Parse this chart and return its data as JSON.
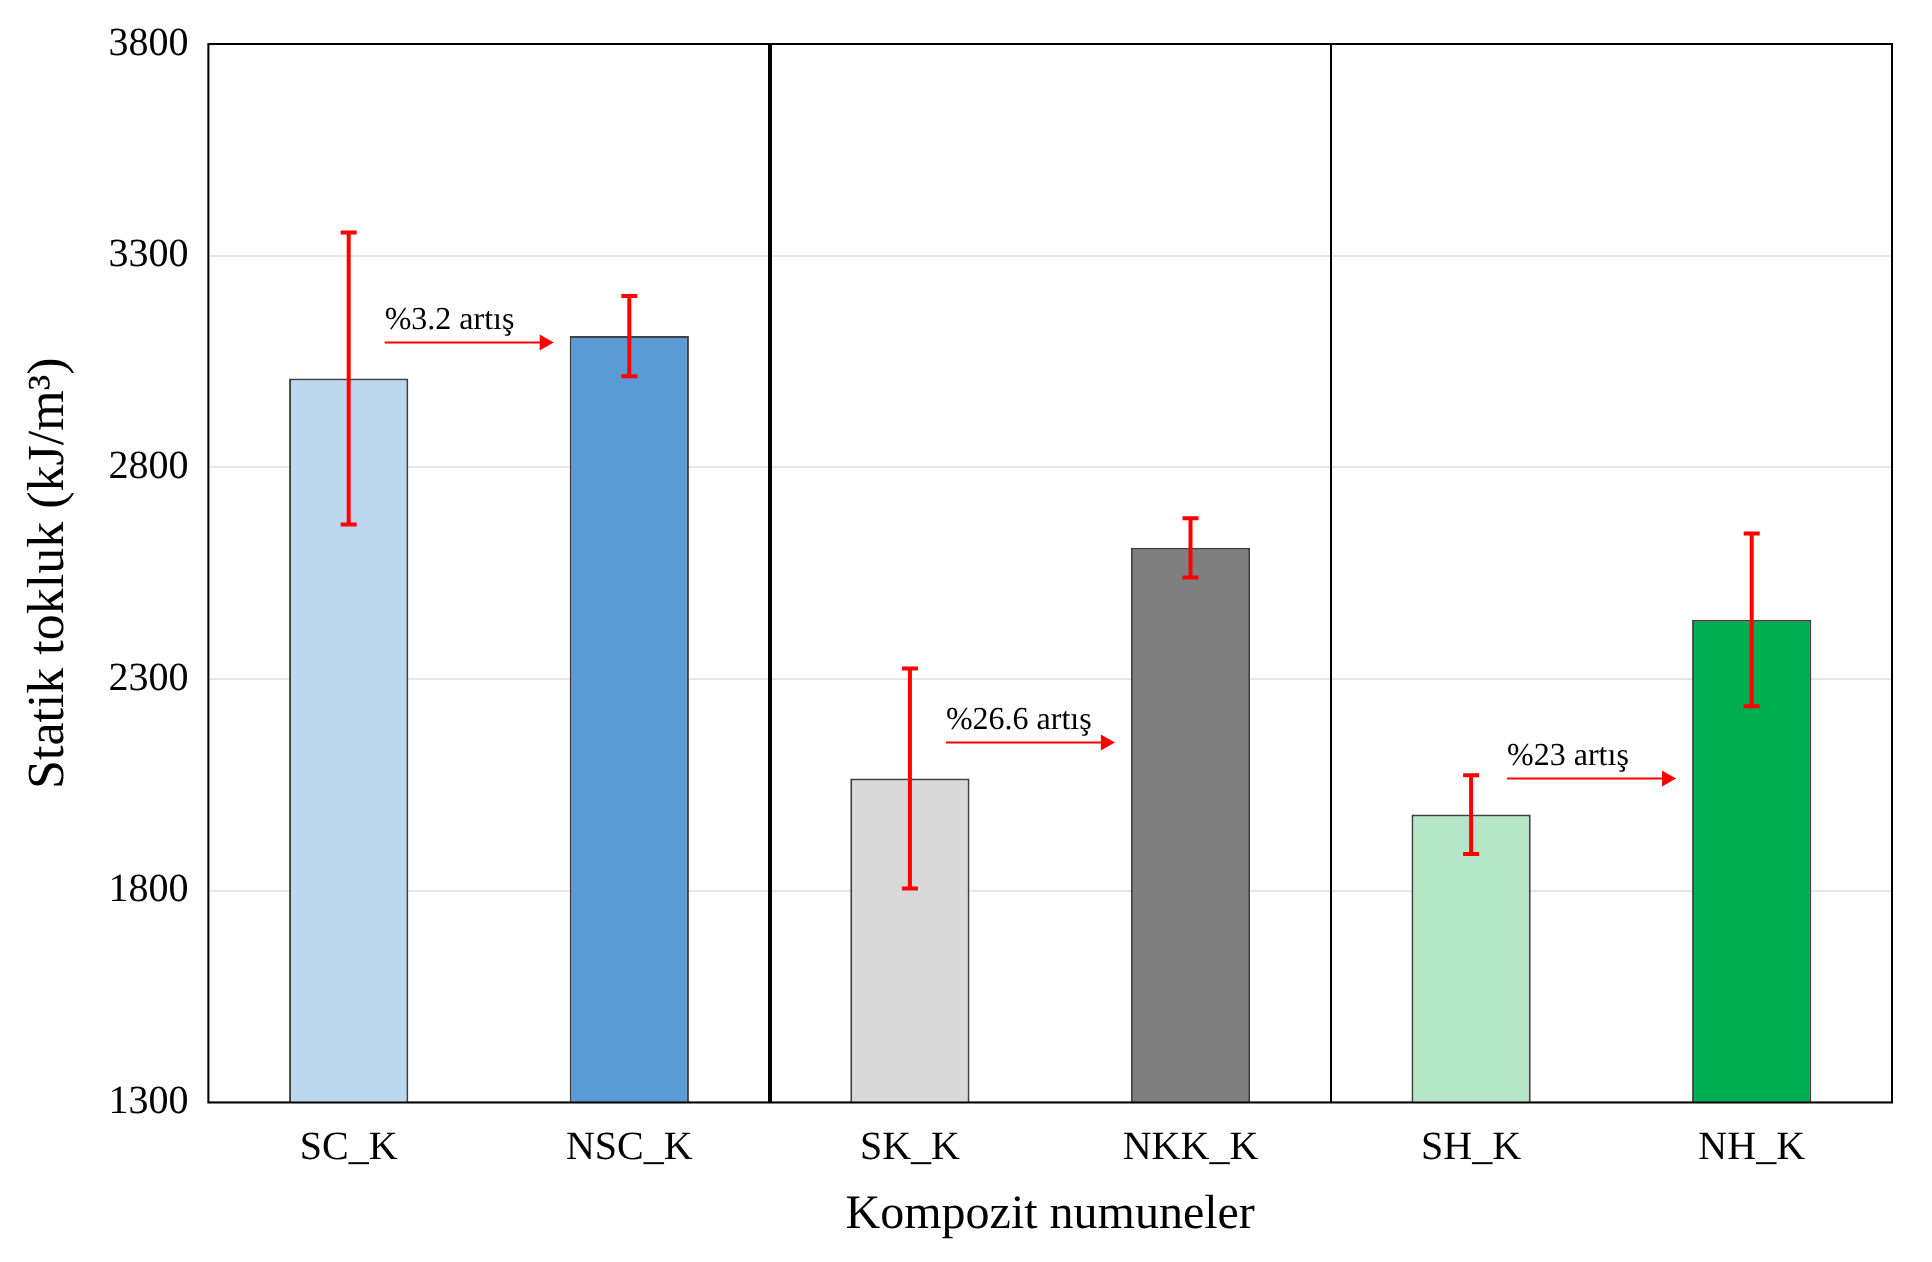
{
  "chart_data": {
    "type": "bar",
    "xlabel": "Kompozit numuneler",
    "ylabel": "Statik tokluk (kJ/m³)",
    "categories": [
      "SC_K",
      "NSC_K",
      "SK_K",
      "NKK_K",
      "SH_K",
      "NH_K"
    ],
    "values": [
      3010,
      3110,
      2065,
      2610,
      1980,
      2440
    ],
    "errors": [
      345,
      95,
      260,
      70,
      93,
      204
    ],
    "colors": [
      "#bdd7ee",
      "#5b9bd5",
      "#d9d9d9",
      "#7f7f7f",
      "#b5e6c8",
      "#00b050"
    ],
    "ylim": [
      1300,
      3800
    ],
    "yticks": [
      1300,
      1800,
      2300,
      2800,
      3300,
      3800
    ],
    "grid": "y",
    "legend": false,
    "annotations": [
      "%3.2 artış",
      "%26.6 artış",
      "%23 artış"
    ]
  }
}
